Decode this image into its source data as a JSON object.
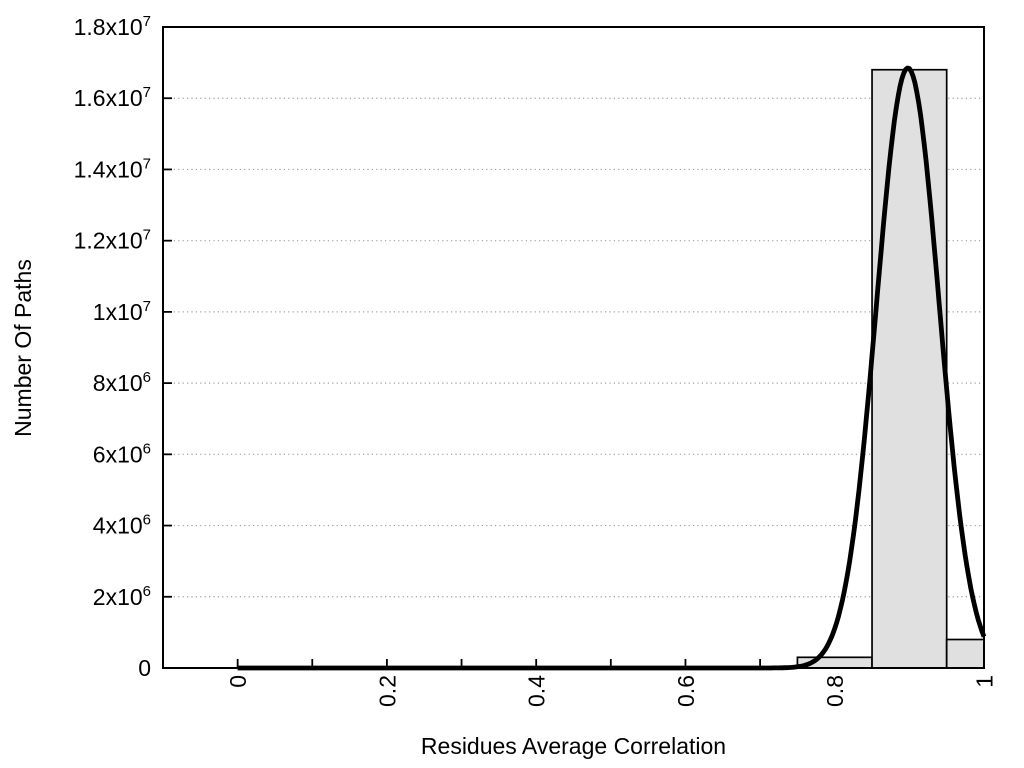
{
  "chart_data": {
    "type": "bar",
    "subtype": "histogram-with-fit-curve",
    "title": "",
    "xlabel": "Residues Average Correlation",
    "ylabel": "Number Of Paths",
    "xlim": [
      -0.1,
      1.0
    ],
    "ylim": [
      0,
      18000000
    ],
    "grid": "horizontal-dotted",
    "legend": "none",
    "x_major_ticks": [
      {
        "v": 0,
        "label": "0"
      },
      {
        "v": 0.2,
        "label": "0.2"
      },
      {
        "v": 0.4,
        "label": "0.4"
      },
      {
        "v": 0.6,
        "label": "0.6"
      },
      {
        "v": 0.8,
        "label": "0.8"
      },
      {
        "v": 1.0,
        "label": "1"
      }
    ],
    "x_minor_ticks": [
      0.1,
      0.3,
      0.5,
      0.7,
      0.9
    ],
    "x_tick_label_rotation_deg": -90,
    "y_ticks": [
      {
        "v": 0,
        "mantissa": "0",
        "exp": "",
        "grid": false
      },
      {
        "v": 2000000,
        "mantissa": "2x10",
        "exp": "6",
        "grid": true
      },
      {
        "v": 4000000,
        "mantissa": "4x10",
        "exp": "6",
        "grid": true
      },
      {
        "v": 6000000,
        "mantissa": "6x10",
        "exp": "6",
        "grid": true
      },
      {
        "v": 8000000,
        "mantissa": "8x10",
        "exp": "6",
        "grid": true
      },
      {
        "v": 10000000,
        "mantissa": "1x10",
        "exp": "7",
        "grid": true
      },
      {
        "v": 12000000,
        "mantissa": "1.2x10",
        "exp": "7",
        "grid": true
      },
      {
        "v": 14000000,
        "mantissa": "1.4x10",
        "exp": "7",
        "grid": true
      },
      {
        "v": 16000000,
        "mantissa": "1.6x10",
        "exp": "7",
        "grid": true
      },
      {
        "v": 18000000,
        "mantissa": "1.8x10",
        "exp": "7",
        "grid": false
      }
    ],
    "bars": [
      {
        "x0": 0.75,
        "x1": 0.85,
        "value": 300000
      },
      {
        "x0": 0.85,
        "x1": 0.95,
        "value": 16800000
      },
      {
        "x0": 0.95,
        "x1": 1.0,
        "value": 800000
      }
    ],
    "fit_curve": {
      "shape": "gaussian",
      "mean": 0.898,
      "sigma": 0.042,
      "peak": 16850000,
      "x_start": 0.0,
      "x_end": 1.0,
      "value_at_x_end": 870000
    },
    "colors": {
      "background": "#ffffff",
      "bar_fill": "#e0e0e0",
      "bar_border": "#000000",
      "curve": "#000000",
      "grid_line": "#9f9f9f",
      "axis": "#000000",
      "text": "#000000"
    }
  }
}
